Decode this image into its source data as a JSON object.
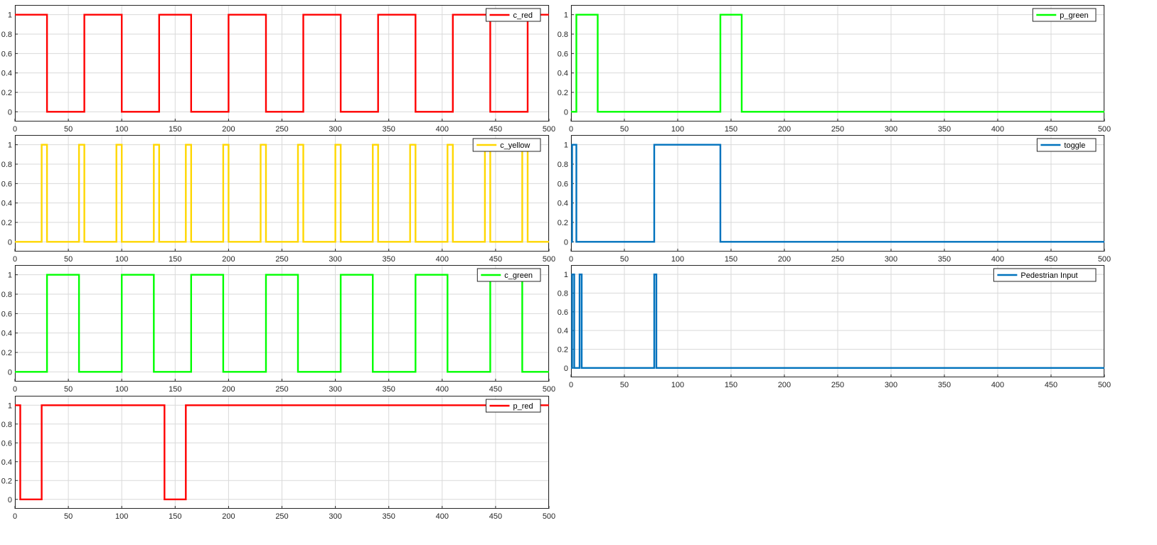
{
  "chart_data": [
    {
      "type": "line",
      "id": "c_red",
      "series": [
        {
          "name": "c_red",
          "color": "#ff0000",
          "x": [
            0,
            30,
            30,
            65,
            65,
            100,
            100,
            135,
            135,
            165,
            165,
            200,
            200,
            235,
            235,
            270,
            270,
            305,
            305,
            340,
            340,
            375,
            375,
            410,
            410,
            445,
            445,
            480,
            480,
            500
          ],
          "y": [
            1,
            1,
            0,
            0,
            1,
            1,
            0,
            0,
            1,
            1,
            0,
            0,
            1,
            1,
            0,
            0,
            1,
            1,
            0,
            0,
            1,
            1,
            0,
            0,
            1,
            1,
            0,
            0,
            1,
            1
          ]
        }
      ],
      "xlim": [
        0,
        500
      ],
      "ylim": [
        -0.1,
        1.1
      ],
      "xticks": [
        0,
        50,
        100,
        150,
        200,
        250,
        300,
        350,
        400,
        450,
        500
      ],
      "yticks": [
        0,
        0.2,
        0.4,
        0.6,
        0.8,
        1
      ],
      "grid": true,
      "legend": "top-right"
    },
    {
      "type": "line",
      "id": "p_green",
      "series": [
        {
          "name": "p_green",
          "color": "#00ff00",
          "x": [
            0,
            5,
            5,
            25,
            25,
            140,
            140,
            160,
            160,
            500
          ],
          "y": [
            0,
            0,
            1,
            1,
            0,
            0,
            1,
            1,
            0,
            0
          ]
        }
      ],
      "xlim": [
        0,
        500
      ],
      "ylim": [
        -0.1,
        1.1
      ],
      "xticks": [
        0,
        50,
        100,
        150,
        200,
        250,
        300,
        350,
        400,
        450,
        500
      ],
      "yticks": [
        0,
        0.2,
        0.4,
        0.6,
        0.8,
        1
      ],
      "grid": true,
      "legend": "top-right"
    },
    {
      "type": "line",
      "id": "c_yellow",
      "series": [
        {
          "name": "c_yellow",
          "color": "#ffd700",
          "x": [
            0,
            25,
            25,
            30,
            30,
            60,
            60,
            65,
            65,
            95,
            95,
            100,
            100,
            130,
            130,
            135,
            135,
            160,
            160,
            165,
            165,
            195,
            195,
            200,
            200,
            230,
            230,
            235,
            235,
            265,
            265,
            270,
            270,
            300,
            300,
            305,
            305,
            335,
            335,
            340,
            340,
            370,
            370,
            375,
            375,
            405,
            405,
            410,
            410,
            440,
            440,
            445,
            445,
            475,
            475,
            480,
            480,
            500
          ],
          "y": [
            0,
            0,
            1,
            1,
            0,
            0,
            1,
            1,
            0,
            0,
            1,
            1,
            0,
            0,
            1,
            1,
            0,
            0,
            1,
            1,
            0,
            0,
            1,
            1,
            0,
            0,
            1,
            1,
            0,
            0,
            1,
            1,
            0,
            0,
            1,
            1,
            0,
            0,
            1,
            1,
            0,
            0,
            1,
            1,
            0,
            0,
            1,
            1,
            0,
            0,
            1,
            1,
            0,
            0,
            1,
            1,
            0,
            0
          ]
        }
      ],
      "xlim": [
        0,
        500
      ],
      "ylim": [
        -0.1,
        1.1
      ],
      "xticks": [
        0,
        50,
        100,
        150,
        200,
        250,
        300,
        350,
        400,
        450,
        500
      ],
      "yticks": [
        0,
        0.2,
        0.4,
        0.6,
        0.8,
        1
      ],
      "grid": true,
      "legend": "top-right"
    },
    {
      "type": "line",
      "id": "toggle",
      "series": [
        {
          "name": "toggle",
          "color": "#0072bd",
          "x": [
            0,
            1,
            1,
            5,
            5,
            78,
            78,
            140,
            140,
            500
          ],
          "y": [
            0,
            0,
            1,
            1,
            0,
            0,
            1,
            1,
            0,
            0
          ]
        }
      ],
      "xlim": [
        0,
        500
      ],
      "ylim": [
        -0.1,
        1.1
      ],
      "xticks": [
        0,
        50,
        100,
        150,
        200,
        250,
        300,
        350,
        400,
        450,
        500
      ],
      "yticks": [
        0,
        0.2,
        0.4,
        0.6,
        0.8,
        1
      ],
      "grid": true,
      "legend": "top-right"
    },
    {
      "type": "line",
      "id": "c_green",
      "series": [
        {
          "name": "c_green",
          "color": "#00ff00",
          "x": [
            0,
            30,
            30,
            60,
            60,
            100,
            100,
            130,
            130,
            165,
            165,
            195,
            195,
            235,
            235,
            265,
            265,
            305,
            305,
            335,
            335,
            375,
            375,
            405,
            405,
            445,
            445,
            475,
            475,
            500
          ],
          "y": [
            0,
            0,
            1,
            1,
            0,
            0,
            1,
            1,
            0,
            0,
            1,
            1,
            0,
            0,
            1,
            1,
            0,
            0,
            1,
            1,
            0,
            0,
            1,
            1,
            0,
            0,
            1,
            1,
            0,
            0
          ]
        }
      ],
      "xlim": [
        0,
        500
      ],
      "ylim": [
        -0.1,
        1.1
      ],
      "xticks": [
        0,
        50,
        100,
        150,
        200,
        250,
        300,
        350,
        400,
        450,
        500
      ],
      "yticks": [
        0,
        0.2,
        0.4,
        0.6,
        0.8,
        1
      ],
      "grid": true,
      "legend": "top-right"
    },
    {
      "type": "line",
      "id": "pedestrian_input",
      "series": [
        {
          "name": "Pedestrian Input",
          "color": "#0072bd",
          "x": [
            0,
            1,
            1,
            3,
            3,
            8,
            8,
            10,
            10,
            78,
            78,
            80,
            80,
            500
          ],
          "y": [
            0,
            0,
            1,
            1,
            0,
            0,
            1,
            1,
            0,
            0,
            1,
            1,
            0,
            0
          ]
        }
      ],
      "xlim": [
        0,
        500
      ],
      "ylim": [
        -0.1,
        1.1
      ],
      "xticks": [
        0,
        50,
        100,
        150,
        200,
        250,
        300,
        350,
        400,
        450,
        500
      ],
      "yticks": [
        0,
        0.2,
        0.4,
        0.6,
        0.8,
        1
      ],
      "grid": true,
      "legend": "top-right"
    },
    {
      "type": "line",
      "id": "p_red",
      "series": [
        {
          "name": "p_red",
          "color": "#ff0000",
          "x": [
            0,
            5,
            5,
            25,
            25,
            140,
            140,
            160,
            160,
            500
          ],
          "y": [
            1,
            1,
            0,
            0,
            1,
            1,
            0,
            0,
            1,
            1
          ]
        }
      ],
      "xlim": [
        0,
        500
      ],
      "ylim": [
        -0.1,
        1.1
      ],
      "xticks": [
        0,
        50,
        100,
        150,
        200,
        250,
        300,
        350,
        400,
        450,
        500
      ],
      "yticks": [
        0,
        0.2,
        0.4,
        0.6,
        0.8,
        1
      ],
      "grid": true,
      "legend": "top-right"
    }
  ]
}
